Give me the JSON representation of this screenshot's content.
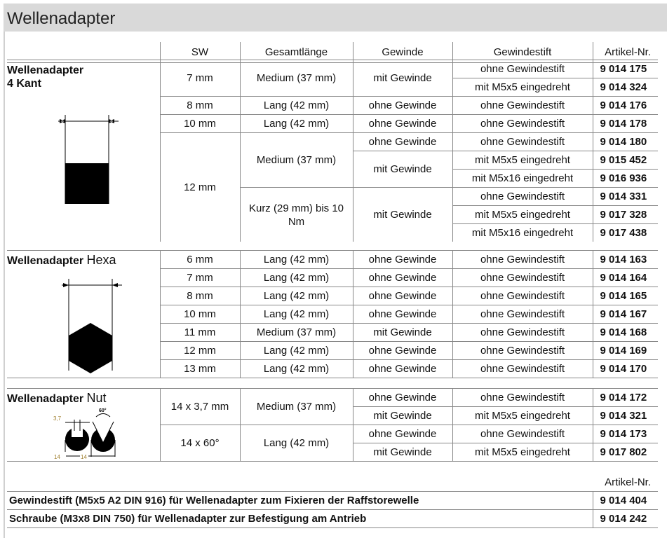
{
  "title": "Wellenadapter",
  "headers": {
    "sw": "SW",
    "length": "Gesamtlänge",
    "thread": "Gewinde",
    "pin": "Gewindestift",
    "art": "Artikel-Nr."
  },
  "sections": [
    {
      "title_bold": "Wellenadapter",
      "title_bold2": "4 Kant",
      "title_normal": "",
      "icon": "square-profile",
      "rows": [
        [
          {
            "t": "7 mm",
            "rs": 2
          },
          {
            "t": "Medium (37 mm)",
            "rs": 2
          },
          {
            "t": "mit Gewinde",
            "rs": 2
          },
          {
            "t": "ohne Gewindestift"
          },
          {
            "t": "9 014 175"
          }
        ],
        [
          {
            "t": "mit M5x5 eingedreht"
          },
          {
            "t": "9 014 324"
          }
        ],
        [
          {
            "t": "8 mm"
          },
          {
            "t": "Lang (42 mm)"
          },
          {
            "t": "ohne Gewinde"
          },
          {
            "t": "ohne Gewindestift"
          },
          {
            "t": "9 014 176"
          }
        ],
        [
          {
            "t": "10 mm"
          },
          {
            "t": "Lang (42 mm)"
          },
          {
            "t": "ohne Gewinde"
          },
          {
            "t": "ohne Gewindestift"
          },
          {
            "t": "9 014 178"
          }
        ],
        [
          {
            "t": "12 mm",
            "rs": 6
          },
          {
            "t": "Medium (37 mm)",
            "rs": 3
          },
          {
            "t": "ohne Gewinde"
          },
          {
            "t": "ohne Gewindestift"
          },
          {
            "t": "9 014 180"
          }
        ],
        [
          {
            "t": "mit Gewinde",
            "rs": 2
          },
          {
            "t": "mit M5x5 eingedreht"
          },
          {
            "t": "9 015 452"
          }
        ],
        [
          {
            "t": "mit M5x16 eingedreht"
          },
          {
            "t": "9 016 936"
          }
        ],
        [
          {
            "t": "Kurz (29 mm) bis 10 Nm",
            "rs": 3
          },
          {
            "t": "mit Gewinde",
            "rs": 3
          },
          {
            "t": "ohne Gewindestift"
          },
          {
            "t": "9 014 331"
          }
        ],
        [
          {
            "t": "mit M5x5 eingedreht"
          },
          {
            "t": "9 017 328"
          }
        ],
        [
          {
            "t": "mit M5x16 eingedreht"
          },
          {
            "t": "9 017 438"
          }
        ]
      ]
    },
    {
      "title_bold": "Wellenadapter",
      "title_normal": "Hexa",
      "icon": "hexagon-profile",
      "rows": [
        [
          {
            "t": "6 mm"
          },
          {
            "t": "Lang (42 mm)"
          },
          {
            "t": "ohne Gewinde"
          },
          {
            "t": "ohne Gewindestift"
          },
          {
            "t": "9 014 163"
          }
        ],
        [
          {
            "t": "7 mm"
          },
          {
            "t": "Lang (42 mm)"
          },
          {
            "t": "ohne Gewinde"
          },
          {
            "t": "ohne Gewindestift"
          },
          {
            "t": "9 014 164"
          }
        ],
        [
          {
            "t": "8 mm"
          },
          {
            "t": "Lang (42 mm)"
          },
          {
            "t": "ohne Gewinde"
          },
          {
            "t": "ohne Gewindestift"
          },
          {
            "t": "9 014 165"
          }
        ],
        [
          {
            "t": "10 mm"
          },
          {
            "t": "Lang (42 mm)"
          },
          {
            "t": "ohne Gewinde"
          },
          {
            "t": "ohne Gewindestift"
          },
          {
            "t": "9 014 167"
          }
        ],
        [
          {
            "t": "11 mm"
          },
          {
            "t": "Medium (37 mm)"
          },
          {
            "t": "mit Gewinde"
          },
          {
            "t": "ohne Gewindestift"
          },
          {
            "t": "9 014 168"
          }
        ],
        [
          {
            "t": "12 mm"
          },
          {
            "t": "Lang (42 mm)"
          },
          {
            "t": "ohne Gewinde"
          },
          {
            "t": "ohne Gewindestift"
          },
          {
            "t": "9 014 169"
          }
        ],
        [
          {
            "t": "13 mm"
          },
          {
            "t": "Lang (42 mm)"
          },
          {
            "t": "ohne Gewinde"
          },
          {
            "t": "ohne Gewindestift"
          },
          {
            "t": "9 014 170"
          }
        ]
      ]
    },
    {
      "title_bold": "Wellenadapter",
      "title_normal": "Nut",
      "icon": "groove-profile",
      "dims": {
        "slot": "3,7",
        "angle": "60°",
        "d1": "14",
        "d2": "14"
      },
      "rows": [
        [
          {
            "t": "14 x 3,7 mm",
            "rs": 2
          },
          {
            "t": "Medium (37 mm)",
            "rs": 2
          },
          {
            "t": "ohne Gewinde"
          },
          {
            "t": "ohne Gewindestift"
          },
          {
            "t": "9 014 172"
          }
        ],
        [
          {
            "t": "mit Gewinde"
          },
          {
            "t": "mit M5x5 eingedreht"
          },
          {
            "t": "9 014 321"
          }
        ],
        [
          {
            "t": "14 x 60°",
            "rs": 2
          },
          {
            "t": "Lang (42 mm)",
            "rs": 2
          },
          {
            "t": "ohne Gewinde"
          },
          {
            "t": "ohne Gewindestift"
          },
          {
            "t": "9 014 173"
          }
        ],
        [
          {
            "t": "mit Gewinde"
          },
          {
            "t": "mit M5x5 eingedreht"
          },
          {
            "t": "9 017 802"
          }
        ]
      ]
    }
  ],
  "accessories": {
    "header": "Artikel-Nr.",
    "items": [
      {
        "text": "Gewindestift (M5x5 A2 DIN 916) für Wellenadapter zum Fixieren der Raffstorewelle",
        "art": "9 014 404"
      },
      {
        "text": "Schraube (M3x8 DIN 750) für Wellenadapter zur Befestigung am Antrieb",
        "art": "9 014 242"
      }
    ]
  }
}
